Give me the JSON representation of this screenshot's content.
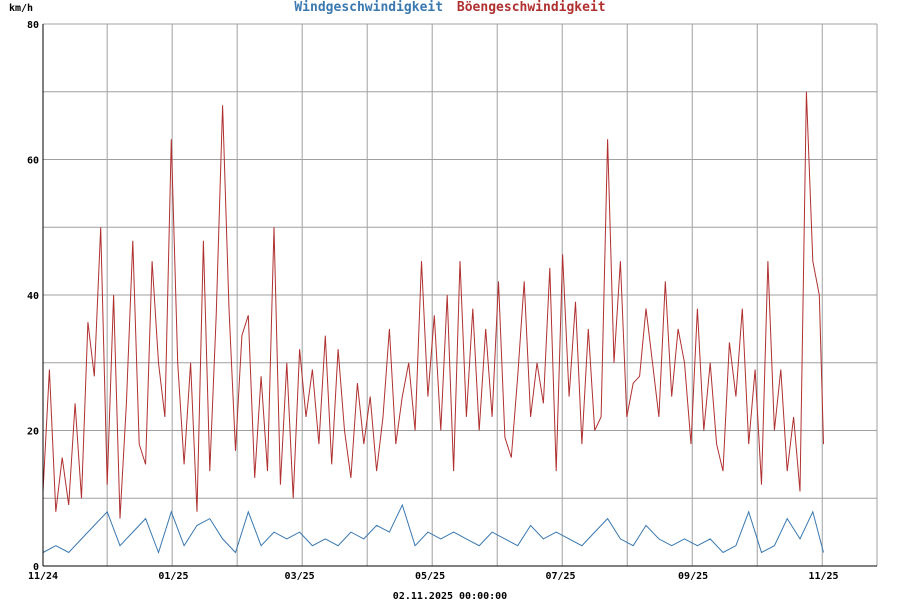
{
  "chart_data": {
    "type": "line",
    "title_parts": [
      "Windgeschwindigkeit",
      "Böengeschwindigkeit"
    ],
    "ylabel": "km/h",
    "footer": "02.11.2025 00:00:00",
    "ylim": [
      0,
      80
    ],
    "y_ticks": [
      0,
      20,
      40,
      60,
      80
    ],
    "x_ticks": [
      {
        "label": "11/24",
        "pos": 0
      },
      {
        "label": "01/25",
        "pos": 61
      },
      {
        "label": "03/25",
        "pos": 120
      },
      {
        "label": "05/25",
        "pos": 181
      },
      {
        "label": "07/25",
        "pos": 242
      },
      {
        "label": "09/25",
        "pos": 304
      },
      {
        "label": "11/25",
        "pos": 365
      }
    ],
    "x_range": [
      0,
      390
    ],
    "grid": true,
    "colors": {
      "wind": "#3a78b0",
      "gust": "#b03030",
      "grid": "#a0a0a0",
      "axis": "#000000"
    },
    "series": [
      {
        "name": "Windgeschwindigkeit",
        "color": "#3a78b0",
        "x": [
          0,
          6,
          12,
          18,
          24,
          30,
          36,
          42,
          48,
          54,
          60,
          66,
          72,
          78,
          84,
          90,
          96,
          102,
          108,
          114,
          120,
          126,
          132,
          138,
          144,
          150,
          156,
          162,
          168,
          174,
          180,
          186,
          192,
          198,
          204,
          210,
          216,
          222,
          228,
          234,
          240,
          246,
          252,
          258,
          264,
          270,
          276,
          282,
          288,
          294,
          300,
          306,
          312,
          318,
          324,
          330,
          336,
          342,
          348,
          354,
          360,
          365
        ],
        "y": [
          2,
          3,
          2,
          4,
          6,
          8,
          3,
          5,
          7,
          2,
          8,
          3,
          6,
          7,
          4,
          2,
          8,
          3,
          5,
          4,
          5,
          3,
          4,
          3,
          5,
          4,
          6,
          5,
          9,
          3,
          5,
          4,
          5,
          4,
          3,
          5,
          4,
          3,
          6,
          4,
          5,
          4,
          3,
          5,
          7,
          4,
          3,
          6,
          4,
          3,
          4,
          3,
          4,
          2,
          3,
          8,
          2,
          3,
          7,
          4,
          8,
          2
        ]
      },
      {
        "name": "Böengeschwindigkeit",
        "color": "#b03030",
        "x": [
          0,
          3,
          6,
          9,
          12,
          15,
          18,
          21,
          24,
          27,
          30,
          33,
          36,
          39,
          42,
          45,
          48,
          51,
          54,
          57,
          60,
          63,
          66,
          69,
          72,
          75,
          78,
          81,
          84,
          87,
          90,
          93,
          96,
          99,
          102,
          105,
          108,
          111,
          114,
          117,
          120,
          123,
          126,
          129,
          132,
          135,
          138,
          141,
          144,
          147,
          150,
          153,
          156,
          159,
          162,
          165,
          168,
          171,
          174,
          177,
          180,
          183,
          186,
          189,
          192,
          195,
          198,
          201,
          204,
          207,
          210,
          213,
          216,
          219,
          222,
          225,
          228,
          231,
          234,
          237,
          240,
          243,
          246,
          249,
          252,
          255,
          258,
          261,
          264,
          267,
          270,
          273,
          276,
          279,
          282,
          285,
          288,
          291,
          294,
          297,
          300,
          303,
          306,
          309,
          312,
          315,
          318,
          321,
          324,
          327,
          330,
          333,
          336,
          339,
          342,
          345,
          348,
          351,
          354,
          357,
          360,
          363,
          365
        ],
        "y": [
          11,
          29,
          8,
          16,
          9,
          24,
          10,
          36,
          28,
          50,
          12,
          40,
          7,
          24,
          48,
          18,
          15,
          45,
          30,
          22,
          63,
          30,
          15,
          30,
          8,
          48,
          14,
          37,
          68,
          38,
          17,
          34,
          37,
          13,
          28,
          14,
          50,
          12,
          30,
          10,
          32,
          22,
          29,
          18,
          34,
          15,
          32,
          20,
          13,
          27,
          18,
          25,
          14,
          22,
          35,
          18,
          25,
          30,
          20,
          45,
          25,
          37,
          20,
          40,
          14,
          45,
          22,
          38,
          20,
          35,
          22,
          42,
          19,
          16,
          28,
          42,
          22,
          30,
          24,
          44,
          14,
          46,
          25,
          39,
          18,
          35,
          20,
          22,
          63,
          30,
          45,
          22,
          27,
          28,
          38,
          30,
          22,
          42,
          25,
          35,
          30,
          18,
          38,
          20,
          30,
          18,
          14,
          33,
          25,
          38,
          18,
          29,
          12,
          45,
          20,
          29,
          14,
          22,
          11,
          70,
          45,
          40,
          18
        ]
      }
    ]
  }
}
